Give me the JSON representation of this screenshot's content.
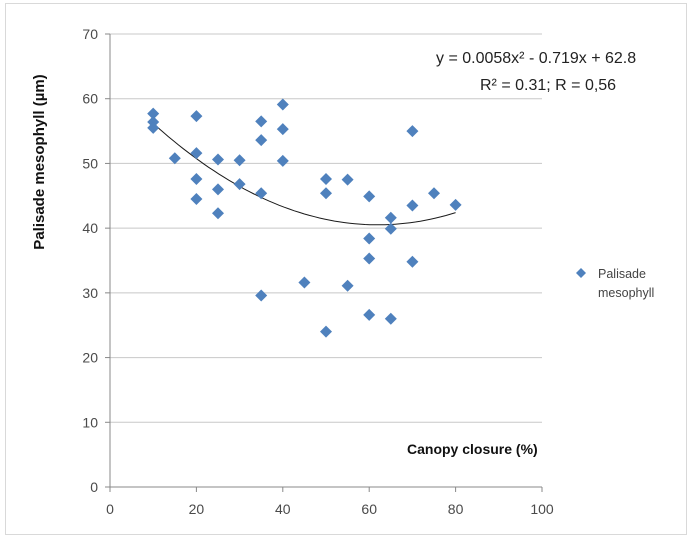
{
  "chart_data": {
    "type": "scatter",
    "xlabel": "Canopy closure (%)",
    "ylabel": "Palisade mesophyll (µm)",
    "xlim": [
      0,
      100
    ],
    "ylim": [
      0,
      70
    ],
    "x_ticks": [
      "0",
      "20",
      "40",
      "60",
      "80",
      "100"
    ],
    "y_ticks": [
      "0",
      "10",
      "20",
      "30",
      "40",
      "50",
      "60",
      "70"
    ],
    "grid": "horizontal",
    "legend_position": "right",
    "annotation": {
      "equation": "y = 0.0058x² - 0.719x + 62.8",
      "stats": "R² = 0.31; R = 0,56"
    },
    "trendline": {
      "type": "polynomial",
      "a": 0.0058,
      "b": -0.719,
      "c": 62.8,
      "x_range": [
        10,
        80
      ]
    },
    "series": [
      {
        "name": "Palisade mesophyll",
        "color": "#4f81bd",
        "marker": "diamond",
        "points": [
          [
            10,
            57.7
          ],
          [
            10,
            56.4
          ],
          [
            10,
            55.5
          ],
          [
            15,
            50.8
          ],
          [
            20,
            57.3
          ],
          [
            20,
            51.6
          ],
          [
            20,
            47.6
          ],
          [
            20,
            44.5
          ],
          [
            25,
            50.6
          ],
          [
            25,
            46.0
          ],
          [
            25,
            42.3
          ],
          [
            30,
            50.5
          ],
          [
            30,
            46.8
          ],
          [
            35,
            56.5
          ],
          [
            35,
            53.6
          ],
          [
            35,
            45.4
          ],
          [
            35,
            29.6
          ],
          [
            40,
            59.1
          ],
          [
            40,
            55.3
          ],
          [
            40,
            50.4
          ],
          [
            45,
            31.6
          ],
          [
            50,
            47.6
          ],
          [
            50,
            45.4
          ],
          [
            50,
            24.0
          ],
          [
            55,
            47.5
          ],
          [
            55,
            31.1
          ],
          [
            60,
            44.9
          ],
          [
            60,
            38.4
          ],
          [
            60,
            35.3
          ],
          [
            60,
            26.6
          ],
          [
            65,
            41.6
          ],
          [
            65,
            39.9
          ],
          [
            65,
            26.0
          ],
          [
            70,
            55.0
          ],
          [
            70,
            43.5
          ],
          [
            70,
            34.8
          ],
          [
            75,
            45.4
          ],
          [
            80,
            43.6
          ]
        ]
      }
    ]
  }
}
